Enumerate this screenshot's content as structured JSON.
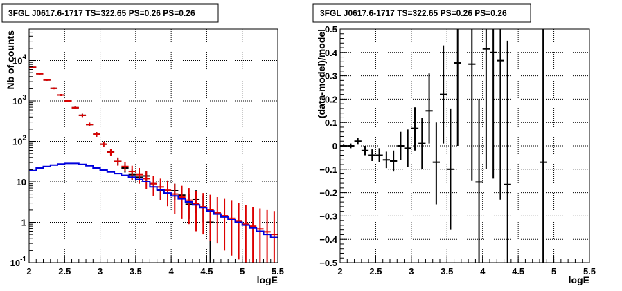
{
  "chart_data": [
    {
      "type": "scatter",
      "title": "3FGL J0617.6-1717 TS=322.65 PS=0.26 PS=0.26",
      "xlabel": "logE",
      "ylabel": "Nb of counts",
      "xlim": [
        2,
        5.5
      ],
      "ylim": [
        0.1,
        60000
      ],
      "yscale": "log",
      "grid": true,
      "x_ticks": [
        "2",
        "2.5",
        "3",
        "3.5",
        "4",
        "4.5",
        "5",
        "5.5"
      ],
      "y_ticks": [
        {
          "value": 0.1,
          "base": "10",
          "exp": "-1"
        },
        {
          "value": 1,
          "base": "1",
          "exp": ""
        },
        {
          "value": 10,
          "base": "10",
          "exp": ""
        },
        {
          "value": 100,
          "base": "10",
          "exp": "2"
        },
        {
          "value": 1000,
          "base": "10",
          "exp": "3"
        },
        {
          "value": 10000,
          "base": "10",
          "exp": "4"
        }
      ],
      "bin_width": 0.1,
      "series": [
        {
          "color": "#000000",
          "style": "errorbars",
          "points": [
            {
              "x": 2.05,
              "y": 6800,
              "lo": 6600,
              "hi": 7000
            },
            {
              "x": 2.15,
              "y": 4700,
              "lo": 4550,
              "hi": 4850
            },
            {
              "x": 2.25,
              "y": 3300,
              "lo": 3180,
              "hi": 3420
            },
            {
              "x": 2.35,
              "y": 2050,
              "lo": 1960,
              "hi": 2140
            },
            {
              "x": 2.45,
              "y": 1400,
              "lo": 1330,
              "hi": 1470
            },
            {
              "x": 2.55,
              "y": 1000,
              "lo": 940,
              "hi": 1060
            },
            {
              "x": 2.65,
              "y": 680,
              "lo": 630,
              "hi": 730
            },
            {
              "x": 2.75,
              "y": 440,
              "lo": 400,
              "hi": 480
            },
            {
              "x": 2.85,
              "y": 260,
              "lo": 235,
              "hi": 290
            },
            {
              "x": 2.95,
              "y": 150,
              "lo": 130,
              "hi": 170
            },
            {
              "x": 3.05,
              "y": 85,
              "lo": 73,
              "hi": 98
            },
            {
              "x": 3.15,
              "y": 55,
              "lo": 46,
              "hi": 65
            },
            {
              "x": 3.25,
              "y": 32,
              "lo": 26,
              "hi": 39
            },
            {
              "x": 3.35,
              "y": 22,
              "lo": 17,
              "hi": 28
            },
            {
              "x": 3.45,
              "y": 15,
              "lo": 11,
              "hi": 20
            },
            {
              "x": 3.55,
              "y": 13,
              "lo": 9.5,
              "hi": 17
            },
            {
              "x": 3.65,
              "y": 14,
              "lo": 10,
              "hi": 18.5
            },
            {
              "x": 3.75,
              "y": 9,
              "lo": 6,
              "hi": 12.5
            },
            {
              "x": 3.85,
              "y": 6,
              "lo": 3.6,
              "hi": 9
            },
            {
              "x": 3.95,
              "y": 6,
              "lo": 3.6,
              "hi": 9
            },
            {
              "x": 4.05,
              "y": 6,
              "lo": 3.6,
              "hi": 9
            },
            {
              "x": 4.15,
              "y": 4.7,
              "lo": 2.6,
              "hi": 7.5
            },
            {
              "x": 4.25,
              "y": 2.8,
              "lo": 1.2,
              "hi": 5
            },
            {
              "x": 4.35,
              "y": 3.6,
              "lo": 1.7,
              "hi": 6.2
            },
            {
              "x": 4.45,
              "y": 2.4,
              "lo": 1.0,
              "hi": 4.6
            },
            {
              "x": 4.55,
              "y": 1.0,
              "lo": 0.1,
              "hi": 2.4
            }
          ]
        },
        {
          "color": "#dd0000",
          "style": "errorbars",
          "points": [
            {
              "x": 2.05,
              "y": 6800,
              "lo": 6500,
              "hi": 7100
            },
            {
              "x": 2.15,
              "y": 4700,
              "lo": 4480,
              "hi": 4920
            },
            {
              "x": 2.25,
              "y": 3300,
              "lo": 3130,
              "hi": 3470
            },
            {
              "x": 2.35,
              "y": 2050,
              "lo": 1940,
              "hi": 2160
            },
            {
              "x": 2.45,
              "y": 1400,
              "lo": 1320,
              "hi": 1480
            },
            {
              "x": 2.55,
              "y": 1000,
              "lo": 940,
              "hi": 1060
            },
            {
              "x": 2.65,
              "y": 680,
              "lo": 630,
              "hi": 730
            },
            {
              "x": 2.75,
              "y": 440,
              "lo": 400,
              "hi": 480
            },
            {
              "x": 2.85,
              "y": 260,
              "lo": 235,
              "hi": 290
            },
            {
              "x": 2.95,
              "y": 150,
              "lo": 130,
              "hi": 170
            },
            {
              "x": 3.05,
              "y": 85,
              "lo": 73,
              "hi": 98
            },
            {
              "x": 3.15,
              "y": 54,
              "lo": 44,
              "hi": 65
            },
            {
              "x": 3.25,
              "y": 32,
              "lo": 25,
              "hi": 40
            },
            {
              "x": 3.35,
              "y": 24,
              "lo": 18,
              "hi": 31
            },
            {
              "x": 3.45,
              "y": 18,
              "lo": 11,
              "hi": 25
            },
            {
              "x": 3.55,
              "y": 15,
              "lo": 9,
              "hi": 22
            },
            {
              "x": 3.65,
              "y": 12,
              "lo": 6.5,
              "hi": 18
            },
            {
              "x": 3.75,
              "y": 9,
              "lo": 4.5,
              "hi": 14
            },
            {
              "x": 3.85,
              "y": 7.5,
              "lo": 3.5,
              "hi": 12
            },
            {
              "x": 3.95,
              "y": 6.2,
              "lo": 2.5,
              "hi": 10.5
            },
            {
              "x": 4.05,
              "y": 5,
              "lo": 1.6,
              "hi": 9
            },
            {
              "x": 4.15,
              "y": 4.2,
              "lo": 1.2,
              "hi": 8
            },
            {
              "x": 4.25,
              "y": 3.5,
              "lo": 0.9,
              "hi": 7
            },
            {
              "x": 4.35,
              "y": 2.9,
              "lo": 0.6,
              "hi": 6
            },
            {
              "x": 4.45,
              "y": 2.4,
              "lo": 0.5,
              "hi": 5.3
            },
            {
              "x": 4.55,
              "y": 2.0,
              "lo": 0.35,
              "hi": 4.8
            },
            {
              "x": 4.65,
              "y": 1.7,
              "lo": 0.3,
              "hi": 4.2
            },
            {
              "x": 4.75,
              "y": 1.45,
              "lo": 0.2,
              "hi": 3.8
            },
            {
              "x": 4.85,
              "y": 1.25,
              "lo": 0.15,
              "hi": 3.4
            },
            {
              "x": 4.95,
              "y": 1.05,
              "lo": 0.12,
              "hi": 3.0
            },
            {
              "x": 5.05,
              "y": 0.9,
              "lo": 0.1,
              "hi": 2.7
            },
            {
              "x": 5.15,
              "y": 0.8,
              "lo": 0.1,
              "hi": 2.4
            },
            {
              "x": 5.25,
              "y": 0.68,
              "lo": 0.1,
              "hi": 2.2
            },
            {
              "x": 5.35,
              "y": 0.58,
              "lo": 0.1,
              "hi": 2.0
            },
            {
              "x": 5.45,
              "y": 0.5,
              "lo": 0.1,
              "hi": 1.9
            }
          ]
        },
        {
          "color": "#0000dd",
          "style": "step",
          "points": [
            {
              "x": 2.05,
              "y": 19
            },
            {
              "x": 2.15,
              "y": 22
            },
            {
              "x": 2.25,
              "y": 24
            },
            {
              "x": 2.35,
              "y": 26
            },
            {
              "x": 2.45,
              "y": 27.5
            },
            {
              "x": 2.55,
              "y": 28.5
            },
            {
              "x": 2.65,
              "y": 28.5
            },
            {
              "x": 2.75,
              "y": 27
            },
            {
              "x": 2.85,
              "y": 25
            },
            {
              "x": 2.95,
              "y": 22
            },
            {
              "x": 3.05,
              "y": 19.5
            },
            {
              "x": 3.15,
              "y": 17.5
            },
            {
              "x": 3.25,
              "y": 16
            },
            {
              "x": 3.35,
              "y": 14.5
            },
            {
              "x": 3.45,
              "y": 13
            },
            {
              "x": 3.55,
              "y": 11.5
            },
            {
              "x": 3.65,
              "y": 10
            },
            {
              "x": 3.75,
              "y": 7.5
            },
            {
              "x": 3.85,
              "y": 6.3
            },
            {
              "x": 3.95,
              "y": 5.3
            },
            {
              "x": 4.05,
              "y": 4.5
            },
            {
              "x": 4.15,
              "y": 3.8
            },
            {
              "x": 4.25,
              "y": 3.2
            },
            {
              "x": 4.35,
              "y": 2.7
            },
            {
              "x": 4.45,
              "y": 2.3
            },
            {
              "x": 4.55,
              "y": 1.9
            },
            {
              "x": 4.65,
              "y": 1.6
            },
            {
              "x": 4.75,
              "y": 1.35
            },
            {
              "x": 4.85,
              "y": 1.15
            },
            {
              "x": 4.95,
              "y": 1.0
            },
            {
              "x": 5.05,
              "y": 0.85
            },
            {
              "x": 5.15,
              "y": 0.72
            },
            {
              "x": 5.25,
              "y": 0.6
            },
            {
              "x": 5.35,
              "y": 0.5
            },
            {
              "x": 5.45,
              "y": 0.42
            }
          ]
        }
      ]
    },
    {
      "type": "scatter",
      "title": "3FGL J0617.6-1717 TS=322.65 PS=0.26 PS=0.26",
      "xlabel": "logE",
      "ylabel": "(data-model)/model",
      "xlim": [
        2,
        5.5
      ],
      "ylim": [
        -0.5,
        0.5
      ],
      "yscale": "linear",
      "grid": true,
      "x_ticks": [
        "2",
        "2.5",
        "3",
        "3.5",
        "4",
        "4.5",
        "5",
        "5.5"
      ],
      "y_ticks": [
        "−0.5",
        "−0.4",
        "−0.3",
        "−0.2",
        "−0.1",
        "0",
        "0.1",
        "0.2",
        "0.3",
        "0.4",
        "0.5"
      ],
      "y_tick_values": [
        -0.5,
        -0.4,
        -0.3,
        -0.2,
        -0.1,
        0,
        0.1,
        0.2,
        0.3,
        0.4,
        0.5
      ],
      "bin_width": 0.1,
      "series": [
        {
          "color": "#000000",
          "style": "errorbars",
          "points": [
            {
              "x": 2.05,
              "y": 0.0,
              "lo": -0.005,
              "hi": 0.005
            },
            {
              "x": 2.15,
              "y": 0.0,
              "lo": -0.01,
              "hi": 0.01
            },
            {
              "x": 2.25,
              "y": 0.02,
              "lo": 0.005,
              "hi": 0.035
            },
            {
              "x": 2.35,
              "y": -0.02,
              "lo": -0.04,
              "hi": 0.0
            },
            {
              "x": 2.45,
              "y": -0.04,
              "lo": -0.065,
              "hi": -0.015
            },
            {
              "x": 2.55,
              "y": -0.04,
              "lo": -0.07,
              "hi": -0.01
            },
            {
              "x": 2.65,
              "y": -0.06,
              "lo": -0.095,
              "hi": -0.025
            },
            {
              "x": 2.75,
              "y": -0.065,
              "lo": -0.11,
              "hi": -0.02
            },
            {
              "x": 2.85,
              "y": 0.0,
              "lo": -0.06,
              "hi": 0.06
            },
            {
              "x": 2.95,
              "y": -0.01,
              "lo": -0.09,
              "hi": 0.07
            },
            {
              "x": 3.05,
              "y": 0.075,
              "lo": -0.02,
              "hi": 0.165
            },
            {
              "x": 3.15,
              "y": 0.01,
              "lo": -0.1,
              "hi": 0.12
            },
            {
              "x": 3.25,
              "y": 0.15,
              "lo": 0.01,
              "hi": 0.31
            },
            {
              "x": 3.35,
              "y": -0.07,
              "lo": -0.25,
              "hi": 0.1
            },
            {
              "x": 3.45,
              "y": 0.22,
              "lo": 0.01,
              "hi": 0.43
            },
            {
              "x": 3.55,
              "y": -0.1,
              "lo": -0.36,
              "hi": 0.16
            },
            {
              "x": 3.65,
              "y": 0.355,
              "lo": 0.0,
              "hi": 0.5
            },
            {
              "x": 3.85,
              "y": 0.35,
              "lo": -0.15,
              "hi": 0.5
            },
            {
              "x": 3.95,
              "y": -0.155,
              "lo": -0.5,
              "hi": 0.2
            },
            {
              "x": 4.05,
              "y": 0.415,
              "lo": -0.1,
              "hi": 0.5
            },
            {
              "x": 4.15,
              "y": 0.4,
              "lo": -0.14,
              "hi": 0.5
            },
            {
              "x": 4.25,
              "y": 0.365,
              "lo": -0.23,
              "hi": 0.5
            },
            {
              "x": 4.35,
              "y": -0.165,
              "lo": -0.5,
              "hi": 0.45
            },
            {
              "x": 4.85,
              "y": -0.07,
              "lo": -0.5,
              "hi": 0.5
            }
          ]
        }
      ]
    }
  ]
}
